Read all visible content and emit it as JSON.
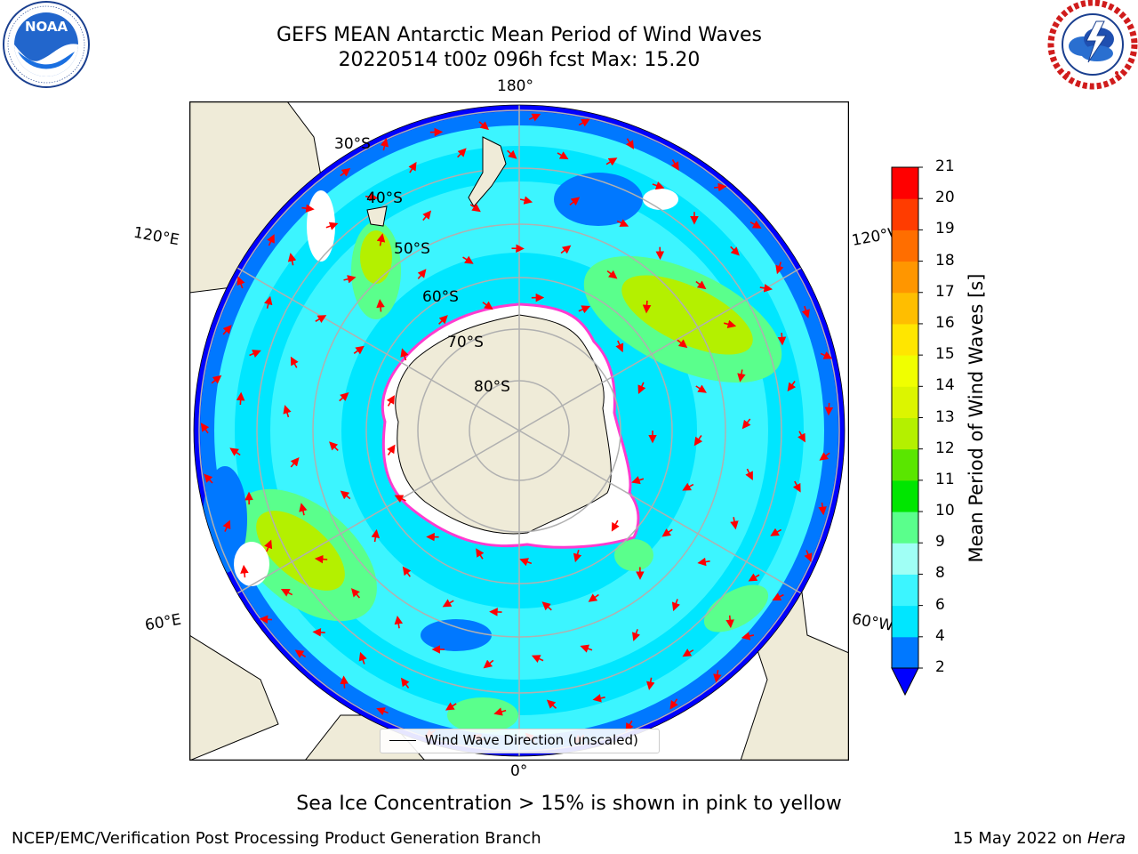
{
  "header": {
    "title_line1": "GEFS MEAN Antarctic Mean Period of Wind Waves",
    "title_line2": "20220514 t00z 096h fcst   Max: 15.20"
  },
  "logos": {
    "noaa_text": "NOAA",
    "noaa_ring_text": "NATIONAL OCEANIC AND ATMOSPHERIC ADMINISTRATION · U.S. DEPARTMENT OF COMMERCE",
    "nws_ring_text": "NATIONAL WEATHER SERVICE"
  },
  "map": {
    "projection": "south polar stereographic",
    "longitude_labels": {
      "top": "180°",
      "bottom": "0°",
      "left_upper": "120°E",
      "left_lower": "60°E",
      "right_upper": "120°W",
      "right_lower": "60°W"
    },
    "latitude_labels": [
      "30°S",
      "40°S",
      "50°S",
      "60°S",
      "70°S",
      "80°S"
    ],
    "colors": {
      "land": "#efebd8",
      "ice": "#ffffff",
      "ice_edge": "#ff3bd0",
      "arrows": "#ff0000",
      "gridlines": "#b0b0b0"
    }
  },
  "legend": {
    "label": "Wind Wave Direction (unscaled)"
  },
  "colorbar": {
    "label": "Mean Period of Wind Waves [s]",
    "unit": "s",
    "ticks": [
      "2",
      "4",
      "6",
      "8",
      "9",
      "10",
      "11",
      "12",
      "13",
      "14",
      "15",
      "16",
      "17",
      "18",
      "19",
      "20",
      "21"
    ],
    "bins": [
      {
        "from": 2,
        "to": 4,
        "color": "#0078ff"
      },
      {
        "from": 4,
        "to": 6,
        "color": "#00e6ff"
      },
      {
        "from": 6,
        "to": 8,
        "color": "#3cf5ff"
      },
      {
        "from": 8,
        "to": 9,
        "color": "#a0fff5"
      },
      {
        "from": 9,
        "to": 10,
        "color": "#5aff8c"
      },
      {
        "from": 10,
        "to": 11,
        "color": "#00e600"
      },
      {
        "from": 11,
        "to": 12,
        "color": "#5ae600"
      },
      {
        "from": 12,
        "to": 13,
        "color": "#b4f000"
      },
      {
        "from": 13,
        "to": 14,
        "color": "#dcf500"
      },
      {
        "from": 14,
        "to": 15,
        "color": "#f0ff00"
      },
      {
        "from": 15,
        "to": 16,
        "color": "#ffe600"
      },
      {
        "from": 16,
        "to": 17,
        "color": "#ffbe00"
      },
      {
        "from": 17,
        "to": 18,
        "color": "#ff9600"
      },
      {
        "from": 18,
        "to": 19,
        "color": "#ff6e00"
      },
      {
        "from": 19,
        "to": 20,
        "color": "#ff3c00"
      },
      {
        "from": 20,
        "to": 21,
        "color": "#ff0000"
      }
    ],
    "under_color": "#0000ff",
    "extend": "min"
  },
  "caption": "Sea Ice Concentration > 15% is shown in pink to yellow",
  "footer": {
    "left": "NCEP/EMC/Verification Post Processing Product Generation Branch",
    "right_date": "15 May 2022 on",
    "right_host": "Hera"
  }
}
